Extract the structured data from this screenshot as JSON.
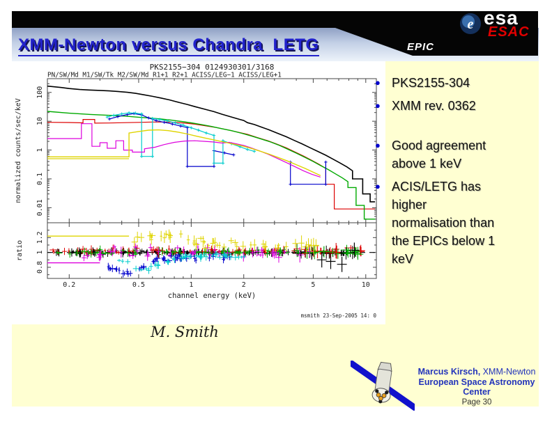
{
  "colors": {
    "slide_bg": "#FFFFD2",
    "title_blue": "#2222CC",
    "bullet_blue": "#0000CC",
    "footer_blue": "#2233BB",
    "esac_red": "#E00000",
    "banner_top": "#8FA0C4",
    "banner_bottom": "#EDF3FA",
    "header_black": "#050505"
  },
  "header": {
    "title": "XMM-Newton versus Chandra  LETG",
    "epic": "EPIC",
    "esa": "esa",
    "esa_e": "e",
    "esac": "ESAC"
  },
  "bullets": {
    "items": [
      {
        "text": "PKS2155-304"
      },
      {
        "text": "XMM rev. 0362"
      },
      {
        "text": "Good agreement above 1 keV"
      },
      {
        "text": "ACIS/LETG has higher normalisation than the EPICs below 1 keV"
      }
    ]
  },
  "caption": "M. Smith",
  "footer": {
    "name": "Marcus Kirsch,",
    "name_suffix": " XMM-Newton",
    "org": "European Space Astronomy Center",
    "page": "Page 30"
  },
  "chart_data": {
    "type": "line",
    "title": "PKS2155−304 0124930301/3168",
    "subtitle": "PN/SW/Md M1/SW/Tk M2/SW/Md R1+1 R2+1  ACISS/LEG−1 ACISS/LEG+1",
    "xlabel": "channel energy (keV)",
    "ylabel_top": "normalized counts/sec/keV",
    "ylabel_bottom": "ratio",
    "timestamp": "msmith 23-Sep-2005 14: 0",
    "x_scale": "log",
    "x_range": [
      0.15,
      11.5
    ],
    "x_ticks": [
      0.2,
      0.5,
      1,
      2,
      5,
      10
    ],
    "top_panel": {
      "y_scale": "log",
      "y_range": [
        0.003,
        300
      ],
      "y_ticks": [
        0.01,
        0.1,
        1,
        10,
        100
      ]
    },
    "bottom_panel": {
      "y_scale": "linear",
      "y_range": [
        0.65,
        1.4
      ],
      "y_ticks": [
        0.8,
        1,
        1.2
      ],
      "ref_line": 1
    },
    "series": [
      {
        "name": "PN/SW/Md",
        "color": "#000000",
        "width": 1.6,
        "points": [
          [
            0.15,
            165
          ],
          [
            0.18,
            148
          ],
          [
            0.2,
            136
          ],
          [
            0.23,
            126
          ],
          [
            0.26,
            121
          ],
          [
            0.3,
            117
          ],
          [
            0.34,
            113
          ],
          [
            0.38,
            108
          ],
          [
            0.43,
            101
          ],
          [
            0.48,
            93
          ],
          [
            0.54,
            82
          ],
          [
            0.6,
            73
          ],
          [
            0.67,
            64
          ],
          [
            0.75,
            55
          ],
          [
            0.85,
            45
          ],
          [
            0.95,
            38
          ],
          [
            1.05,
            32
          ],
          [
            1.2,
            26
          ],
          [
            1.35,
            21.5
          ],
          [
            1.5,
            17.5
          ],
          [
            1.7,
            14
          ],
          [
            1.9,
            11.5
          ],
          [
            2.0,
            10.6
          ],
          [
            2.1,
            8.9
          ],
          [
            2.3,
            7.7
          ],
          [
            2.55,
            6.1
          ],
          [
            2.8,
            5.0
          ],
          [
            3.1,
            3.9
          ],
          [
            3.5,
            2.9
          ],
          [
            3.9,
            2.15
          ],
          [
            4.3,
            1.65
          ],
          [
            4.8,
            1.2
          ],
          [
            5.3,
            0.9
          ],
          [
            5.9,
            0.66
          ],
          [
            6.5,
            0.48
          ],
          [
            7.1,
            0.36
          ],
          [
            7.8,
            0.26
          ],
          [
            8.4,
            0.19
          ],
          [
            8.4,
            0.1
          ],
          [
            9.6,
            0.1
          ],
          [
            9.6,
            0.03
          ],
          [
            10.6,
            0.03
          ],
          [
            10.6,
            0.016
          ],
          [
            11.3,
            0.016
          ]
        ]
      },
      {
        "name": "M1/SW/Tk",
        "color": "#DD0000",
        "width": 1.2,
        "points": [
          [
            0.15,
            9.2
          ],
          [
            0.2,
            9.0
          ],
          [
            0.24,
            8.8
          ],
          [
            0.24,
            11.5
          ],
          [
            0.28,
            11.5
          ],
          [
            0.28,
            8.6
          ],
          [
            0.34,
            8.7
          ],
          [
            0.42,
            8.9
          ],
          [
            0.5,
            9.1
          ],
          [
            0.6,
            9.4
          ],
          [
            0.7,
            9.4
          ],
          [
            0.8,
            9.1
          ],
          [
            0.92,
            8.6
          ],
          [
            1.05,
            7.9
          ],
          [
            1.2,
            7.0
          ],
          [
            1.4,
            6.0
          ],
          [
            1.6,
            5.1
          ],
          [
            1.85,
            4.2
          ],
          [
            2.1,
            3.5
          ],
          [
            2.4,
            2.7
          ],
          [
            2.75,
            2.1
          ],
          [
            3.1,
            1.6
          ],
          [
            3.5,
            1.2
          ],
          [
            3.9,
            0.88
          ],
          [
            4.4,
            0.62
          ],
          [
            4.9,
            0.44
          ],
          [
            5.4,
            0.32
          ],
          [
            5.9,
            0.23
          ],
          [
            5.9,
            0.065
          ],
          [
            6.6,
            0.065
          ],
          [
            6.6,
            0.009
          ],
          [
            11.3,
            0.009
          ]
        ]
      },
      {
        "name": "M2/SW/Md",
        "color": "#00AA00",
        "width": 1.4,
        "points": [
          [
            0.15,
            22
          ],
          [
            0.2,
            19
          ],
          [
            0.25,
            17.5
          ],
          [
            0.3,
            16.5
          ],
          [
            0.36,
            15.8
          ],
          [
            0.43,
            14.8
          ],
          [
            0.5,
            13.8
          ],
          [
            0.58,
            12.9
          ],
          [
            0.67,
            11.9
          ],
          [
            0.77,
            10.9
          ],
          [
            0.88,
            9.8
          ],
          [
            1.0,
            8.8
          ],
          [
            1.15,
            7.6
          ],
          [
            1.3,
            6.6
          ],
          [
            1.5,
            5.5
          ],
          [
            1.7,
            4.7
          ],
          [
            1.95,
            3.8
          ],
          [
            2.2,
            3.1
          ],
          [
            2.5,
            2.45
          ],
          [
            2.85,
            1.9
          ],
          [
            3.2,
            1.45
          ],
          [
            3.6,
            1.05
          ],
          [
            4.0,
            0.78
          ],
          [
            4.5,
            0.55
          ],
          [
            5.0,
            0.4
          ],
          [
            5.5,
            0.29
          ],
          [
            6.1,
            0.21
          ],
          [
            6.7,
            0.15
          ],
          [
            7.3,
            0.11
          ],
          [
            7.9,
            0.08
          ],
          [
            7.9,
            0.05
          ],
          [
            8.8,
            0.05
          ],
          [
            8.8,
            0.012
          ],
          [
            9.8,
            0.012
          ],
          [
            9.8,
            0.004
          ],
          [
            11.3,
            0.004
          ]
        ]
      },
      {
        "name": "R1+1",
        "color": "#0000CC",
        "width": 1.2,
        "markers": true,
        "points": [
          [
            0.34,
            12
          ],
          [
            0.38,
            14.5
          ],
          [
            0.43,
            17
          ],
          [
            0.47,
            18.5
          ],
          [
            0.52,
            16.5
          ],
          [
            0.57,
            13
          ],
          [
            0.63,
            10.5
          ],
          [
            0.7,
            9.2
          ],
          [
            0.78,
            8.0
          ],
          [
            0.87,
            6.8
          ],
          [
            0.95,
            6.0
          ],
          [
            0.95,
            0.27
          ],
          [
            1.35,
            0.27
          ],
          [
            1.35,
            0.95
          ],
          [
            1.55,
            0.8
          ],
          [
            1.75,
            0.68
          ],
          [
            null,
            null
          ],
          [
            3.7,
            0.38
          ],
          [
            3.7,
            0.065
          ],
          [
            5.9,
            0.065
          ],
          [
            5.9,
            0.38
          ]
        ]
      },
      {
        "name": "R2+1",
        "color": "#00CCCC",
        "width": 1.2,
        "markers": true,
        "points": [
          [
            0.33,
            14
          ],
          [
            0.36,
            16
          ],
          [
            0.4,
            18
          ],
          [
            0.44,
            19.5
          ],
          [
            0.48,
            19
          ],
          [
            0.52,
            18
          ],
          [
            0.52,
            0.6
          ],
          [
            0.6,
            0.6
          ],
          [
            0.6,
            12.5
          ],
          [
            0.66,
            11.5
          ],
          [
            0.73,
            10.2
          ],
          [
            0.81,
            8.8
          ],
          [
            0.9,
            7.3
          ],
          [
            1.0,
            5.9
          ],
          [
            1.1,
            4.9
          ],
          [
            1.22,
            3.9
          ],
          [
            1.35,
            3.2
          ],
          [
            1.35,
            0.35
          ],
          [
            1.52,
            0.35
          ],
          [
            1.52,
            2.1
          ],
          [
            1.7,
            1.65
          ],
          [
            1.9,
            1.3
          ],
          [
            2.1,
            1.05
          ],
          [
            2.3,
            0.9
          ]
        ]
      },
      {
        "name": "ACISS/LEG−1",
        "color": "#DD00DD",
        "width": 1.2,
        "points": [
          [
            0.15,
            2.5
          ],
          [
            0.235,
            2.5
          ],
          [
            0.235,
            8.2
          ],
          [
            0.27,
            8.2
          ],
          [
            0.27,
            1.35
          ],
          [
            0.3,
            1.35
          ],
          [
            0.3,
            1.8
          ],
          [
            0.33,
            1.8
          ],
          [
            0.33,
            1.15
          ],
          [
            0.37,
            1.15
          ],
          [
            0.37,
            2.1
          ],
          [
            0.41,
            2.1
          ],
          [
            0.41,
            1.0
          ],
          [
            0.46,
            1.0
          ],
          [
            0.46,
            0.85
          ],
          [
            0.54,
            0.85
          ],
          [
            0.54,
            1.1
          ],
          [
            0.62,
            1.25
          ],
          [
            0.7,
            1.55
          ],
          [
            0.8,
            1.85
          ],
          [
            0.92,
            2.05
          ],
          [
            1.05,
            2.1
          ],
          [
            1.2,
            2.0
          ],
          [
            1.35,
            1.9
          ],
          [
            1.5,
            1.75
          ],
          [
            1.65,
            1.85
          ],
          [
            1.8,
            1.65
          ],
          [
            2.0,
            1.45
          ],
          [
            2.2,
            1.2
          ],
          [
            2.45,
            0.95
          ],
          [
            2.75,
            0.72
          ],
          [
            3.1,
            0.52
          ],
          [
            3.5,
            0.37
          ],
          [
            3.9,
            0.27
          ],
          [
            4.4,
            0.19
          ],
          [
            4.9,
            0.145
          ],
          [
            5.5,
            0.115
          ]
        ]
      },
      {
        "name": "ACISS/LEG+1",
        "color": "#DFD400",
        "width": 1.4,
        "points": [
          [
            0.15,
            0.58
          ],
          [
            0.44,
            0.58
          ],
          [
            0.44,
            3.9
          ],
          [
            0.5,
            4.4
          ],
          [
            0.57,
            4.9
          ],
          [
            0.65,
            5.0
          ],
          [
            0.74,
            4.7
          ],
          [
            0.84,
            4.2
          ],
          [
            0.95,
            3.6
          ],
          [
            1.08,
            3.0
          ],
          [
            1.22,
            2.55
          ],
          [
            1.4,
            2.15
          ],
          [
            1.6,
            1.8
          ],
          [
            1.8,
            1.55
          ],
          [
            2.0,
            1.35
          ],
          [
            2.25,
            1.1
          ],
          [
            2.5,
            0.9
          ],
          [
            2.8,
            0.72
          ],
          [
            3.15,
            0.55
          ],
          [
            3.55,
            0.42
          ],
          [
            4.0,
            0.31
          ],
          [
            4.5,
            0.23
          ],
          [
            5.0,
            0.17
          ],
          [
            5.5,
            0.13
          ]
        ]
      }
    ],
    "top_segments": [
      {
        "color": "#DFD400",
        "pts": [
          [
            0.15,
            0.5
          ],
          [
            0.44,
            0.5
          ]
        ]
      }
    ],
    "ratio_scatter": [
      {
        "name": "PN",
        "color": "#000000",
        "n": 150,
        "x_range": [
          0.16,
          9.0
        ],
        "base": 1.0,
        "jitter": 0.035,
        "err": 1.0,
        "seed": 11
      },
      {
        "name": "M1",
        "color": "#DD0000",
        "n": 85,
        "x_range": [
          0.16,
          9.5
        ],
        "base": 1.02,
        "jitter": 0.05,
        "err": 1.0,
        "seed": 22
      },
      {
        "name": "M2",
        "color": "#00AA00",
        "n": 85,
        "x_range": [
          0.16,
          9.5
        ],
        "base": 1.0,
        "jitter": 0.05,
        "err": 1.0,
        "seed": 33
      },
      {
        "name": "ACISS/LEG-1",
        "color": "#DD00DD",
        "n": 50,
        "x_range": [
          0.18,
          5.2
        ],
        "base": 1.0,
        "jitter": 0.11,
        "err": 1.3,
        "seed": 44,
        "dip": {
          "center": 0.24,
          "depth": -0.1,
          "width": 0.1
        }
      },
      {
        "name": "ACISS/LEG+1",
        "color": "#DFD400",
        "n": 50,
        "x_range": [
          0.45,
          5.2
        ],
        "base": 1.1,
        "jitter": 0.08,
        "err": 1.4,
        "seed": 55,
        "dip": {
          "center": 0.65,
          "depth": 0.13,
          "width": 0.2
        }
      },
      {
        "name": "R1+1",
        "color": "#0000CC",
        "n": 45,
        "x_range": [
          0.32,
          1.7
        ],
        "base": 0.93,
        "jitter": 0.05,
        "err": 1.0,
        "seed": 66,
        "dip": {
          "center": 0.42,
          "depth": -0.2,
          "width": 0.13
        }
      },
      {
        "name": "R2+1",
        "color": "#00CCCC",
        "n": 45,
        "x_range": [
          0.38,
          2.2
        ],
        "base": 0.95,
        "jitter": 0.05,
        "err": 1.0,
        "seed": 77,
        "dip": {
          "center": 0.55,
          "depth": -0.16,
          "width": 0.13
        }
      }
    ],
    "ratio_points": [
      {
        "color": "#000000",
        "err": 2.2,
        "pts": [
          [
            5.6,
            0.9
          ],
          [
            6.3,
            0.88
          ],
          [
            7.3,
            0.84
          ],
          [
            8.6,
            1.03
          ]
        ]
      }
    ],
    "ratio_segments": [
      {
        "color": "#DFD400",
        "pts": [
          [
            0.15,
            1.22
          ],
          [
            0.44,
            1.22
          ]
        ]
      },
      {
        "color": "#DD00DD",
        "pts": [
          [
            0.15,
            0.86
          ],
          [
            0.3,
            0.86
          ]
        ]
      }
    ]
  }
}
